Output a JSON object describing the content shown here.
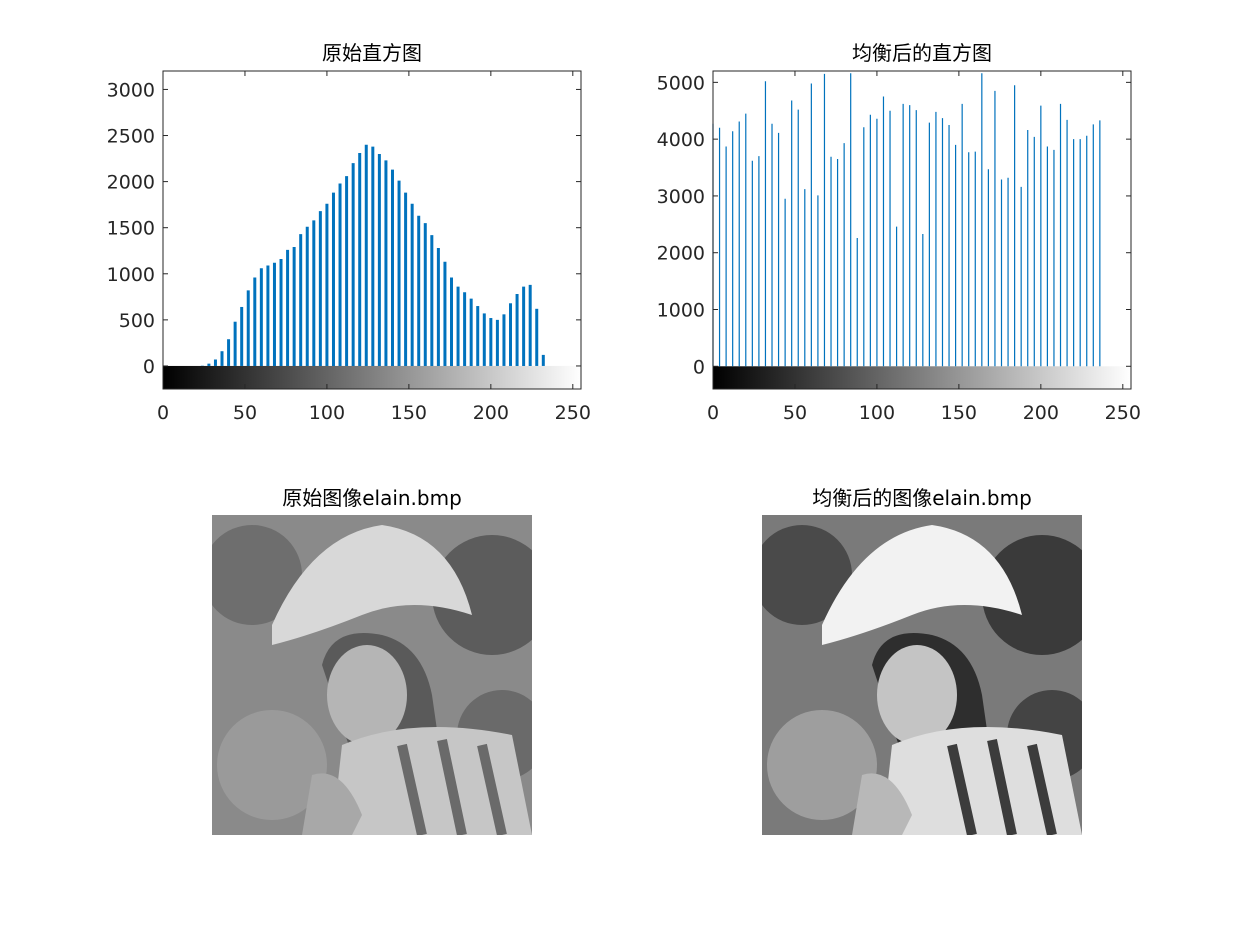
{
  "chart_data": [
    {
      "type": "bar",
      "title": "原始直方图",
      "xlim": [
        0,
        255
      ],
      "ylim": [
        -250,
        3200
      ],
      "xticks": [
        "0",
        "50",
        "100",
        "150",
        "200",
        "250"
      ],
      "yticks": [
        "0",
        "500",
        "1000",
        "1500",
        "2000",
        "2500",
        "3000"
      ],
      "colorbar": "grayscale 0-255",
      "bar_color": "#0072BD",
      "x": [
        0,
        4,
        8,
        12,
        16,
        20,
        24,
        28,
        32,
        36,
        40,
        44,
        48,
        52,
        56,
        60,
        64,
        68,
        72,
        76,
        80,
        84,
        88,
        92,
        96,
        100,
        104,
        108,
        112,
        116,
        120,
        124,
        128,
        132,
        136,
        140,
        144,
        148,
        152,
        156,
        160,
        164,
        168,
        172,
        176,
        180,
        184,
        188,
        192,
        196,
        200,
        204,
        208,
        212,
        216,
        220,
        224,
        228,
        232,
        236,
        240,
        244,
        248,
        252
      ],
      "values": [
        0,
        0,
        0,
        0,
        0,
        0,
        3,
        25,
        70,
        160,
        290,
        480,
        640,
        820,
        960,
        1060,
        1090,
        1120,
        1160,
        1260,
        1290,
        1430,
        1510,
        1580,
        1680,
        1760,
        1880,
        1980,
        2060,
        2200,
        2310,
        2400,
        2380,
        2300,
        2230,
        2130,
        2010,
        1880,
        1760,
        1630,
        1550,
        1420,
        1280,
        1130,
        960,
        860,
        800,
        730,
        650,
        570,
        520,
        500,
        560,
        680,
        780,
        860,
        880,
        620,
        120,
        0,
        0,
        0,
        0,
        0
      ]
    },
    {
      "type": "bar",
      "title": "均衡后的直方图",
      "xlim": [
        0,
        255
      ],
      "ylim": [
        -400,
        5200
      ],
      "xticks": [
        "0",
        "50",
        "100",
        "150",
        "200",
        "250"
      ],
      "yticks": [
        "0",
        "1000",
        "2000",
        "3000",
        "4000",
        "5000"
      ],
      "colorbar": "grayscale 0-255",
      "bar_color": "#0072BD",
      "x": [
        0,
        4,
        8,
        12,
        16,
        20,
        24,
        28,
        32,
        36,
        40,
        44,
        48,
        52,
        56,
        60,
        64,
        68,
        72,
        76,
        80,
        84,
        88,
        92,
        96,
        100,
        104,
        108,
        112,
        116,
        120,
        124,
        128,
        132,
        136,
        140,
        144,
        148,
        152,
        156,
        160,
        164,
        168,
        172,
        176,
        180,
        184,
        188,
        192,
        196,
        200,
        204,
        208,
        212,
        216,
        220,
        224,
        228,
        232,
        236,
        240,
        244,
        248,
        252
      ],
      "values": [
        4270,
        4200,
        3870,
        4140,
        4310,
        4450,
        3620,
        3700,
        5020,
        4270,
        4110,
        2950,
        4680,
        4520,
        3120,
        4980,
        3010,
        5150,
        3690,
        3650,
        3930,
        5160,
        2260,
        4210,
        4430,
        4360,
        4750,
        4500,
        2460,
        4620,
        4600,
        4510,
        2330,
        4290,
        4480,
        4370,
        4250,
        3900,
        4620,
        3770,
        3780,
        5160,
        3470,
        4850,
        3290,
        3320,
        4950,
        3160,
        4160,
        4040,
        4590,
        3870,
        3810,
        4620,
        4340,
        4000,
        4000,
        4060,
        4260,
        4330,
        0,
        0,
        0,
        0
      ]
    }
  ],
  "images": [
    {
      "title": "原始图像elain.bmp"
    },
    {
      "title": "均衡后的图像elain.bmp"
    }
  ]
}
